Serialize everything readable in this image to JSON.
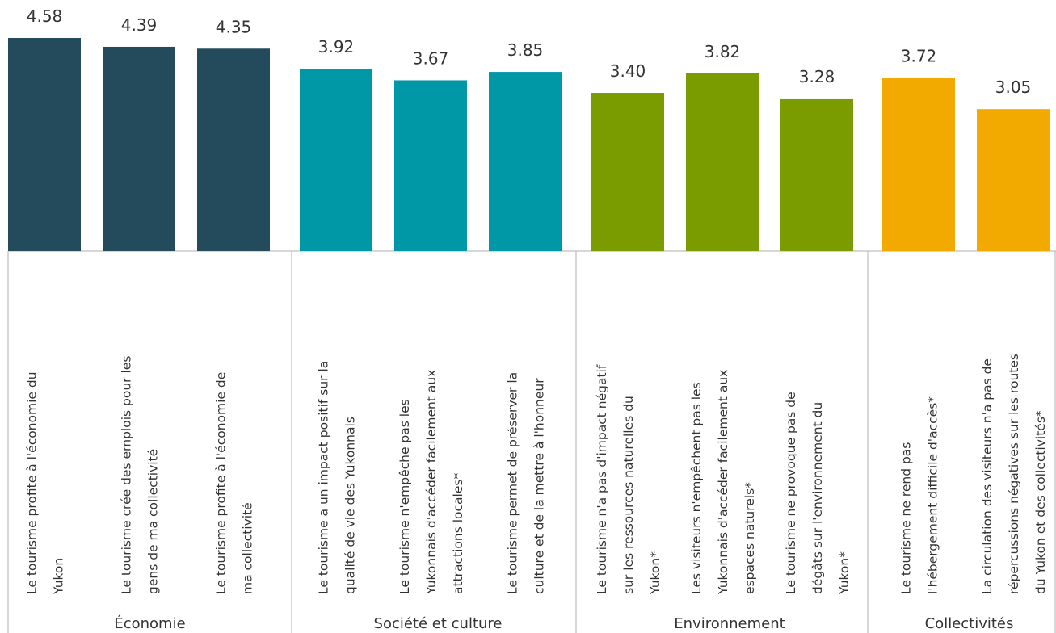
{
  "chart_data": {
    "type": "bar",
    "title": "",
    "xlabel": "",
    "ylabel": "",
    "ylim": [
      0,
      4.58
    ],
    "grid": false,
    "legend": "none",
    "groups": [
      {
        "name": "Économie",
        "color": "#234B5B",
        "bars": [
          {
            "label": [
              "Le tourisme profite à l'économie du",
              "Yukon"
            ],
            "value": 4.58
          },
          {
            "label": [
              "Le tourisme crée des emplois pour les",
              "gens de ma collectivité"
            ],
            "value": 4.39
          },
          {
            "label": [
              "Le tourisme profite à l'économie de",
              "ma collectivité"
            ],
            "value": 4.35
          }
        ]
      },
      {
        "name": "Société et culture",
        "color": "#0097A7",
        "bars": [
          {
            "label": [
              "Le tourisme a un impact positif sur la",
              "qualité de vie des Yukonnais"
            ],
            "value": 3.92
          },
          {
            "label": [
              "Le tourisme n'empêche pas les",
              "Yukonnais d'accéder facilement aux",
              "attractions locales*"
            ],
            "value": 3.67
          },
          {
            "label": [
              "Le tourisme permet de préserver la",
              "culture et de la mettre à l'honneur"
            ],
            "value": 3.85
          }
        ]
      },
      {
        "name": "Environnement",
        "color": "#7A9C00",
        "bars": [
          {
            "label": [
              "Le tourisme n'a pas d'impact négatif",
              "sur les ressources naturelles du",
              "Yukon*"
            ],
            "value": 3.4
          },
          {
            "label": [
              "Les visiteurs n'empêchent pas les",
              "Yukonnais d'accéder facilement aux",
              "espaces naturels*"
            ],
            "value": 3.82
          },
          {
            "label": [
              "Le tourisme ne provoque pas de",
              "dégâts sur l'environnement du",
              "Yukon*"
            ],
            "value": 3.28
          }
        ]
      },
      {
        "name": "Collectivités",
        "color": "#F2A900",
        "bars": [
          {
            "label": [
              "Le tourisme ne rend pas",
              "l'hébergement difficile d'accès*"
            ],
            "value": 3.72
          },
          {
            "label": [
              "La circulation des visiteurs n'a pas de",
              "répercussions négatives sur les routes",
              "du Yukon et des collectivités*"
            ],
            "value": 3.05
          }
        ]
      }
    ],
    "value_labels": [
      "4.58",
      "4.39",
      "4.35",
      "3.92",
      "3.67",
      "3.85",
      "3.40",
      "3.82",
      "3.28",
      "3.72",
      "3.05"
    ]
  }
}
